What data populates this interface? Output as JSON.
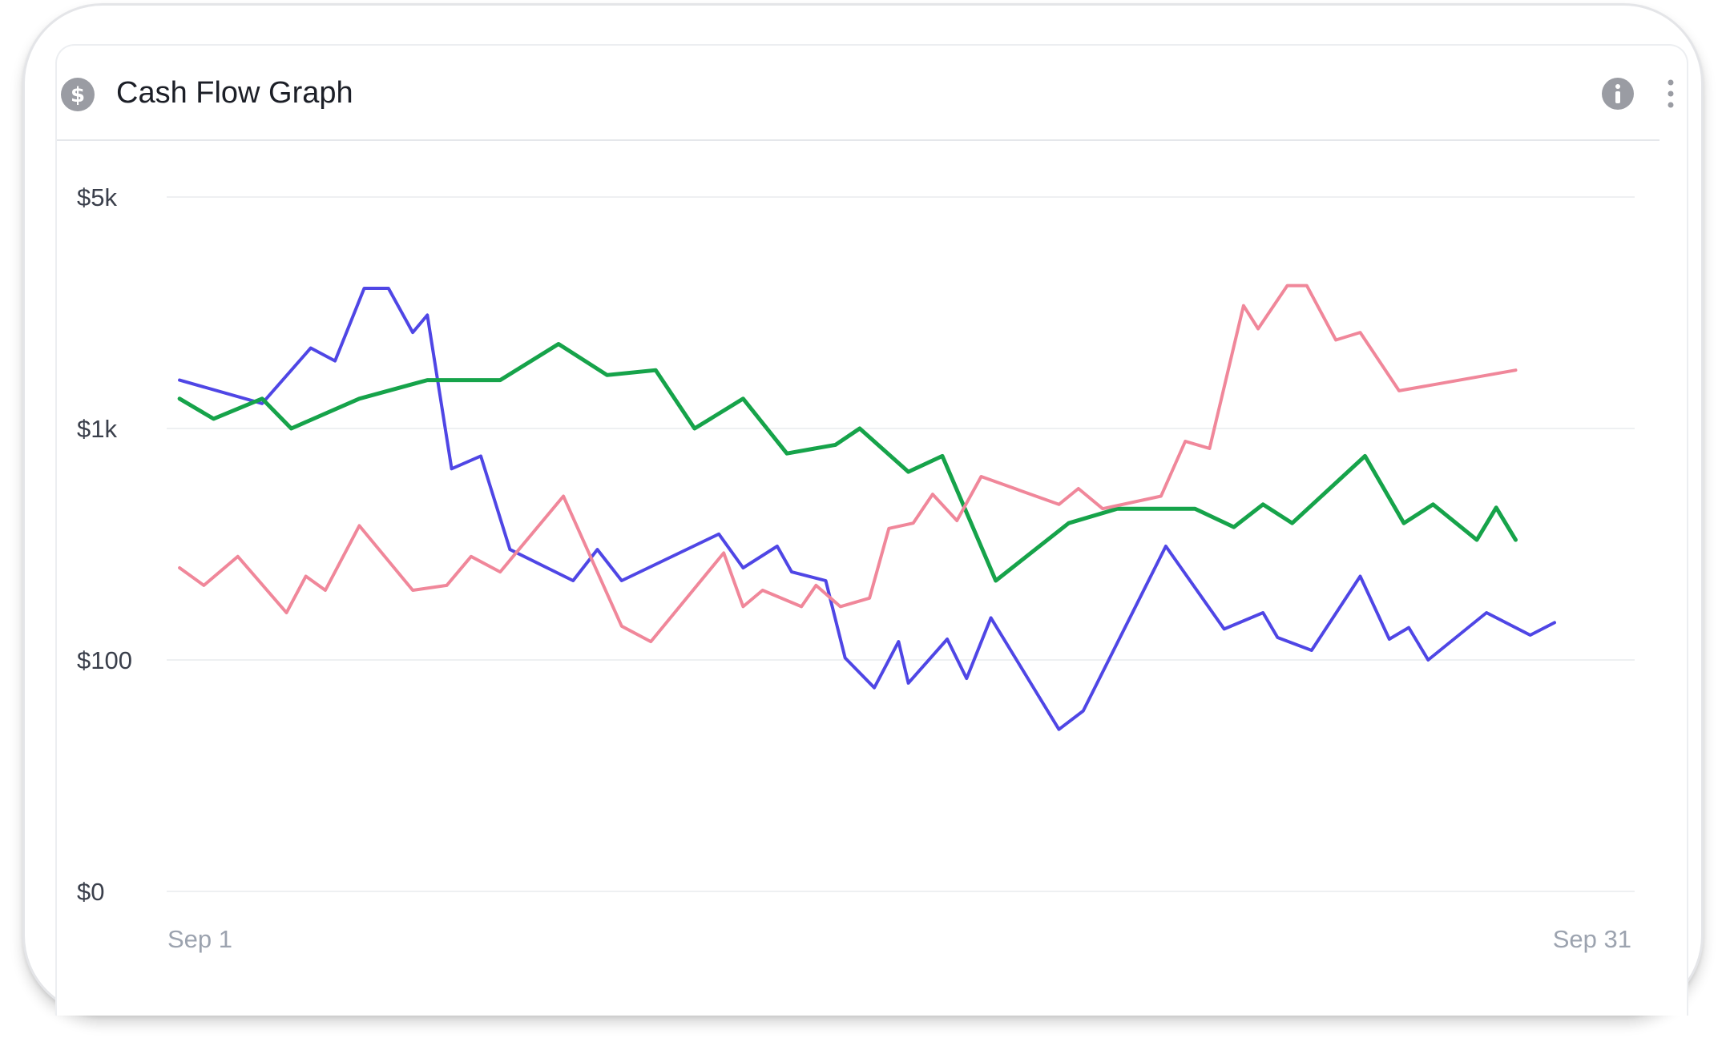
{
  "card": {
    "title": "Cash Flow Graph",
    "title_icon": "dollar-circle-icon",
    "actions": [
      "info-icon",
      "more-vertical-icon"
    ]
  },
  "colors": {
    "series_blue": "#4f46e5",
    "series_green": "#16a34a",
    "series_pink": "#f0879a",
    "grid": "#eef0f2",
    "icon_gray": "#9a9ca3"
  },
  "chart_data": {
    "type": "line",
    "title": "Cash Flow Graph",
    "xlabel": "",
    "ylabel": "",
    "y_scale": "log-like (uneven)",
    "y_ticks": [
      {
        "label": "$5k",
        "value": 5000
      },
      {
        "label": "$1k",
        "value": 1000
      },
      {
        "label": "$100",
        "value": 100
      },
      {
        "label": "$0",
        "value": 0
      }
    ],
    "x_ticks": [
      {
        "label": "Sep 1",
        "value": 1
      },
      {
        "label": "Sep 31",
        "value": 31
      }
    ],
    "xlim": [
      1,
      31
    ],
    "grid": true,
    "legend": "none",
    "series": [
      {
        "color": "#4f46e5",
        "points": [
          [
            1.1,
            1400
          ],
          [
            2.8,
            1190
          ],
          [
            3.8,
            1750
          ],
          [
            4.3,
            1600
          ],
          [
            4.9,
            2650
          ],
          [
            5.4,
            2650
          ],
          [
            5.9,
            1950
          ],
          [
            6.2,
            2200
          ],
          [
            6.7,
            670
          ],
          [
            7.3,
            760
          ],
          [
            7.9,
            300
          ],
          [
            9.2,
            220
          ],
          [
            9.7,
            300
          ],
          [
            10.2,
            220
          ],
          [
            12.2,
            350
          ],
          [
            12.7,
            250
          ],
          [
            13.4,
            310
          ],
          [
            13.7,
            240
          ],
          [
            14.4,
            220
          ],
          [
            14.8,
            102
          ],
          [
            15.4,
            88
          ],
          [
            15.9,
            120
          ],
          [
            16.1,
            90
          ],
          [
            16.9,
            123
          ],
          [
            17.3,
            92
          ],
          [
            17.8,
            152
          ],
          [
            19.2,
            70
          ],
          [
            19.7,
            78
          ],
          [
            21.4,
            310
          ],
          [
            22.6,
            136
          ],
          [
            23.4,
            160
          ],
          [
            23.7,
            125
          ],
          [
            24.4,
            110
          ],
          [
            25.4,
            230
          ],
          [
            26.0,
            123
          ],
          [
            26.4,
            138
          ],
          [
            26.8,
            100
          ],
          [
            28.0,
            160
          ],
          [
            28.9,
            128
          ],
          [
            29.4,
            145
          ]
        ]
      },
      {
        "color": "#16a34a",
        "points": [
          [
            1.1,
            1230
          ],
          [
            1.8,
            1070
          ],
          [
            2.8,
            1230
          ],
          [
            3.4,
            1000
          ],
          [
            4.8,
            1230
          ],
          [
            6.2,
            1400
          ],
          [
            7.7,
            1400
          ],
          [
            8.9,
            1800
          ],
          [
            9.9,
            1450
          ],
          [
            10.9,
            1500
          ],
          [
            11.7,
            1000
          ],
          [
            12.7,
            1230
          ],
          [
            13.6,
            780
          ],
          [
            14.6,
            850
          ],
          [
            15.1,
            1000
          ],
          [
            16.1,
            650
          ],
          [
            16.8,
            760
          ],
          [
            17.9,
            220
          ],
          [
            19.4,
            390
          ],
          [
            20.4,
            450
          ],
          [
            22.0,
            450
          ],
          [
            22.8,
            375
          ],
          [
            23.4,
            470
          ],
          [
            24.0,
            390
          ],
          [
            25.5,
            760
          ],
          [
            26.3,
            390
          ],
          [
            26.9,
            470
          ],
          [
            27.8,
            330
          ],
          [
            28.2,
            455
          ],
          [
            28.6,
            330
          ]
        ]
      },
      {
        "color": "#f0879a",
        "points": [
          [
            1.1,
            250
          ],
          [
            1.6,
            210
          ],
          [
            2.3,
            280
          ],
          [
            3.3,
            160
          ],
          [
            3.7,
            230
          ],
          [
            4.1,
            200
          ],
          [
            4.8,
            380
          ],
          [
            5.9,
            200
          ],
          [
            6.6,
            210
          ],
          [
            7.1,
            280
          ],
          [
            7.7,
            240
          ],
          [
            9.0,
            510
          ],
          [
            10.2,
            140
          ],
          [
            10.8,
            120
          ],
          [
            12.3,
            290
          ],
          [
            12.7,
            170
          ],
          [
            13.1,
            200
          ],
          [
            13.9,
            170
          ],
          [
            14.2,
            210
          ],
          [
            14.7,
            170
          ],
          [
            15.3,
            185
          ],
          [
            15.7,
            370
          ],
          [
            16.2,
            390
          ],
          [
            16.6,
            520
          ],
          [
            17.1,
            400
          ],
          [
            17.6,
            620
          ],
          [
            19.2,
            470
          ],
          [
            19.6,
            550
          ],
          [
            20.1,
            450
          ],
          [
            21.3,
            510
          ],
          [
            21.8,
            880
          ],
          [
            22.3,
            820
          ],
          [
            23.0,
            2350
          ],
          [
            23.3,
            2000
          ],
          [
            23.9,
            2700
          ],
          [
            24.3,
            2700
          ],
          [
            24.9,
            1850
          ],
          [
            25.4,
            1950
          ],
          [
            26.2,
            1300
          ],
          [
            28.6,
            1500
          ]
        ]
      }
    ]
  }
}
